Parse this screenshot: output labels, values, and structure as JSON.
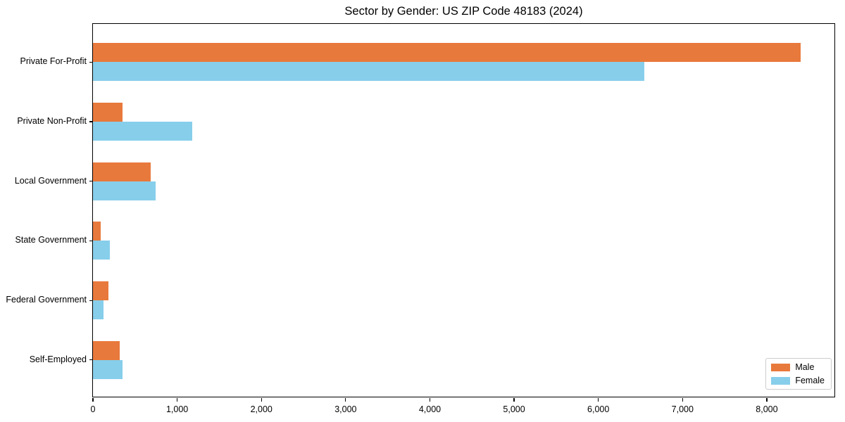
{
  "title": "Sector by Gender: US ZIP Code 48183 (2024)",
  "chart_data": {
    "type": "bar",
    "orientation": "horizontal",
    "title": "Sector by Gender: US ZIP Code 48183 (2024)",
    "categories": [
      "Private For-Profit",
      "Private Non-Profit",
      "Local Government",
      "State Government",
      "Federal Government",
      "Self-Employed"
    ],
    "series": [
      {
        "name": "Male",
        "color": "#e8793c",
        "values": [
          8400,
          350,
          685,
          90,
          185,
          320
        ]
      },
      {
        "name": "Female",
        "color": "#87ceeb",
        "values": [
          6550,
          1175,
          740,
          200,
          125,
          355
        ]
      }
    ],
    "xlabel": "",
    "ylabel": "",
    "xlim": [
      0,
      8820
    ],
    "xticks": [
      0,
      1000,
      2000,
      3000,
      4000,
      5000,
      6000,
      7000,
      8000
    ],
    "xtick_labels": [
      "0",
      "1,000",
      "2,000",
      "3,000",
      "4,000",
      "5,000",
      "6,000",
      "7,000",
      "8,000"
    ],
    "grid": false,
    "legend_position": "lower right"
  }
}
